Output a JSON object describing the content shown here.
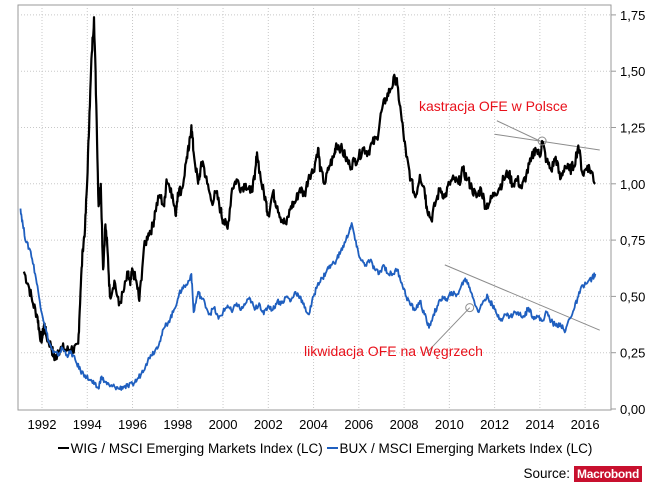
{
  "chart_data": {
    "type": "line",
    "title": "",
    "xlabel": "",
    "ylabel": "",
    "x_ticks": [
      "1992",
      "1994",
      "1996",
      "1998",
      "2000",
      "2002",
      "2004",
      "2006",
      "2008",
      "2010",
      "2012",
      "2014",
      "2016"
    ],
    "y_ticks": [
      "0,00",
      "0,25",
      "0,50",
      "0,75",
      "1,00",
      "1,25",
      "1,50",
      "1,75"
    ],
    "xlim": [
      1991.0,
      2017.0
    ],
    "ylim": [
      0.0,
      1.8
    ],
    "y_axis_side": "right",
    "grid": true,
    "legend_position": "bottom",
    "series": [
      {
        "name": "WIG / MSCI Emerging Markets Index (LC)",
        "color": "#000000",
        "points": [
          [
            1991.2,
            0.61
          ],
          [
            1991.4,
            0.55
          ],
          [
            1991.6,
            0.47
          ],
          [
            1991.8,
            0.41
          ],
          [
            1991.9,
            0.33
          ],
          [
            1992.0,
            0.31
          ],
          [
            1992.1,
            0.38
          ],
          [
            1992.2,
            0.32
          ],
          [
            1992.4,
            0.28
          ],
          [
            1992.5,
            0.24
          ],
          [
            1992.6,
            0.22
          ],
          [
            1992.7,
            0.26
          ],
          [
            1992.9,
            0.27
          ],
          [
            1993.1,
            0.26
          ],
          [
            1993.3,
            0.27
          ],
          [
            1993.4,
            0.25
          ],
          [
            1993.6,
            0.29
          ],
          [
            1993.7,
            0.52
          ],
          [
            1993.8,
            0.71
          ],
          [
            1993.9,
            0.8
          ],
          [
            1994.0,
            1.02
          ],
          [
            1994.1,
            1.32
          ],
          [
            1994.2,
            1.58
          ],
          [
            1994.3,
            1.74
          ],
          [
            1994.4,
            1.35
          ],
          [
            1994.5,
            0.9
          ],
          [
            1994.6,
            1.0
          ],
          [
            1994.7,
            0.62
          ],
          [
            1994.8,
            0.82
          ],
          [
            1994.9,
            0.7
          ],
          [
            1995.0,
            0.5
          ],
          [
            1995.2,
            0.57
          ],
          [
            1995.4,
            0.46
          ],
          [
            1995.6,
            0.52
          ],
          [
            1995.8,
            0.6
          ],
          [
            1995.9,
            0.55
          ],
          [
            1996.0,
            0.62
          ],
          [
            1996.2,
            0.55
          ],
          [
            1996.3,
            0.48
          ],
          [
            1996.5,
            0.71
          ],
          [
            1996.7,
            0.78
          ],
          [
            1996.9,
            0.81
          ],
          [
            1997.0,
            0.88
          ],
          [
            1997.2,
            0.95
          ],
          [
            1997.4,
            0.9
          ],
          [
            1997.5,
            1.02
          ],
          [
            1997.7,
            0.98
          ],
          [
            1997.9,
            0.86
          ],
          [
            1998.0,
            0.96
          ],
          [
            1998.2,
            0.98
          ],
          [
            1998.4,
            1.12
          ],
          [
            1998.5,
            1.16
          ],
          [
            1998.6,
            1.26
          ],
          [
            1998.7,
            1.14
          ],
          [
            1998.9,
            1.0
          ],
          [
            1999.0,
            1.06
          ],
          [
            1999.1,
            1.1
          ],
          [
            1999.3,
            1.0
          ],
          [
            1999.5,
            0.92
          ],
          [
            1999.7,
            0.96
          ],
          [
            1999.9,
            0.88
          ],
          [
            2000.0,
            0.84
          ],
          [
            2000.2,
            0.8
          ],
          [
            2000.4,
            0.98
          ],
          [
            2000.6,
            1.02
          ],
          [
            2000.8,
            0.98
          ],
          [
            2001.0,
            1.0
          ],
          [
            2001.2,
            0.96
          ],
          [
            2001.4,
            1.02
          ],
          [
            2001.5,
            1.14
          ],
          [
            2001.7,
            1.0
          ],
          [
            2001.9,
            0.92
          ],
          [
            2002.0,
            0.86
          ],
          [
            2002.2,
            0.96
          ],
          [
            2002.4,
            0.9
          ],
          [
            2002.6,
            0.84
          ],
          [
            2002.8,
            0.82
          ],
          [
            2003.0,
            0.9
          ],
          [
            2003.2,
            0.92
          ],
          [
            2003.4,
            0.98
          ],
          [
            2003.6,
            0.95
          ],
          [
            2003.8,
            1.04
          ],
          [
            2004.0,
            1.06
          ],
          [
            2004.2,
            1.16
          ],
          [
            2004.3,
            1.06
          ],
          [
            2004.5,
            1.0
          ],
          [
            2004.7,
            1.08
          ],
          [
            2004.9,
            1.12
          ],
          [
            2005.0,
            1.18
          ],
          [
            2005.2,
            1.16
          ],
          [
            2005.4,
            1.12
          ],
          [
            2005.6,
            1.08
          ],
          [
            2005.8,
            1.1
          ],
          [
            2006.0,
            1.12
          ],
          [
            2006.2,
            1.16
          ],
          [
            2006.4,
            1.14
          ],
          [
            2006.6,
            1.18
          ],
          [
            2006.8,
            1.2
          ],
          [
            2007.0,
            1.32
          ],
          [
            2007.2,
            1.38
          ],
          [
            2007.4,
            1.42
          ],
          [
            2007.6,
            1.47
          ],
          [
            2007.7,
            1.44
          ],
          [
            2007.9,
            1.28
          ],
          [
            2008.1,
            1.12
          ],
          [
            2008.3,
            1.02
          ],
          [
            2008.5,
            0.94
          ],
          [
            2008.7,
            1.04
          ],
          [
            2008.9,
            0.98
          ],
          [
            2009.0,
            0.9
          ],
          [
            2009.2,
            0.84
          ],
          [
            2009.4,
            0.92
          ],
          [
            2009.6,
            0.98
          ],
          [
            2009.8,
            0.94
          ],
          [
            2010.0,
            1.0
          ],
          [
            2010.2,
            1.02
          ],
          [
            2010.4,
            1.0
          ],
          [
            2010.6,
            1.06
          ],
          [
            2010.8,
            1.02
          ],
          [
            2011.0,
            0.98
          ],
          [
            2011.2,
            0.94
          ],
          [
            2011.4,
            0.98
          ],
          [
            2011.6,
            0.9
          ],
          [
            2011.8,
            0.92
          ],
          [
            2012.0,
            0.96
          ],
          [
            2012.2,
            0.98
          ],
          [
            2012.4,
            1.02
          ],
          [
            2012.6,
            1.05
          ],
          [
            2012.8,
            1.0
          ],
          [
            2013.0,
            1.02
          ],
          [
            2013.2,
            0.98
          ],
          [
            2013.4,
            1.04
          ],
          [
            2013.6,
            1.1
          ],
          [
            2013.8,
            1.16
          ],
          [
            2014.0,
            1.12
          ],
          [
            2014.1,
            1.19
          ],
          [
            2014.3,
            1.1
          ],
          [
            2014.5,
            1.06
          ],
          [
            2014.7,
            1.12
          ],
          [
            2014.9,
            1.02
          ],
          [
            2015.1,
            1.08
          ],
          [
            2015.3,
            1.06
          ],
          [
            2015.5,
            1.08
          ],
          [
            2015.7,
            1.17
          ],
          [
            2015.9,
            1.04
          ],
          [
            2016.1,
            1.08
          ],
          [
            2016.3,
            1.05
          ],
          [
            2016.45,
            1.0
          ]
        ]
      },
      {
        "name": "BUX / MSCI Emerging Markets Index (LC)",
        "color": "#1f5fbf",
        "points": [
          [
            1991.05,
            0.89
          ],
          [
            1991.15,
            0.82
          ],
          [
            1991.3,
            0.74
          ],
          [
            1991.5,
            0.7
          ],
          [
            1991.7,
            0.6
          ],
          [
            1991.9,
            0.48
          ],
          [
            1992.1,
            0.38
          ],
          [
            1992.3,
            0.3
          ],
          [
            1992.5,
            0.25
          ],
          [
            1992.7,
            0.24
          ],
          [
            1992.9,
            0.27
          ],
          [
            1993.1,
            0.24
          ],
          [
            1993.3,
            0.25
          ],
          [
            1993.5,
            0.21
          ],
          [
            1993.7,
            0.17
          ],
          [
            1993.9,
            0.15
          ],
          [
            1994.1,
            0.13
          ],
          [
            1994.3,
            0.11
          ],
          [
            1994.5,
            0.09
          ],
          [
            1994.6,
            0.14
          ],
          [
            1994.8,
            0.12
          ],
          [
            1995.0,
            0.1
          ],
          [
            1995.2,
            0.1
          ],
          [
            1995.4,
            0.09
          ],
          [
            1995.6,
            0.1
          ],
          [
            1995.8,
            0.1
          ],
          [
            1996.0,
            0.11
          ],
          [
            1996.2,
            0.13
          ],
          [
            1996.4,
            0.16
          ],
          [
            1996.6,
            0.2
          ],
          [
            1996.8,
            0.24
          ],
          [
            1997.0,
            0.26
          ],
          [
            1997.2,
            0.3
          ],
          [
            1997.4,
            0.36
          ],
          [
            1997.6,
            0.39
          ],
          [
            1997.8,
            0.43
          ],
          [
            1998.0,
            0.49
          ],
          [
            1998.2,
            0.54
          ],
          [
            1998.4,
            0.55
          ],
          [
            1998.6,
            0.6
          ],
          [
            1998.7,
            0.43
          ],
          [
            1998.9,
            0.52
          ],
          [
            1999.0,
            0.5
          ],
          [
            1999.2,
            0.47
          ],
          [
            1999.4,
            0.42
          ],
          [
            1999.6,
            0.45
          ],
          [
            1999.8,
            0.4
          ],
          [
            2000.0,
            0.43
          ],
          [
            2000.2,
            0.46
          ],
          [
            2000.4,
            0.43
          ],
          [
            2000.6,
            0.47
          ],
          [
            2000.8,
            0.44
          ],
          [
            2001.0,
            0.47
          ],
          [
            2001.2,
            0.49
          ],
          [
            2001.4,
            0.44
          ],
          [
            2001.6,
            0.47
          ],
          [
            2001.8,
            0.42
          ],
          [
            2002.0,
            0.46
          ],
          [
            2002.2,
            0.44
          ],
          [
            2002.4,
            0.48
          ],
          [
            2002.6,
            0.47
          ],
          [
            2002.8,
            0.5
          ],
          [
            2003.0,
            0.48
          ],
          [
            2003.2,
            0.52
          ],
          [
            2003.4,
            0.5
          ],
          [
            2003.6,
            0.45
          ],
          [
            2003.8,
            0.42
          ],
          [
            2004.0,
            0.5
          ],
          [
            2004.2,
            0.56
          ],
          [
            2004.4,
            0.58
          ],
          [
            2004.6,
            0.62
          ],
          [
            2004.8,
            0.64
          ],
          [
            2005.0,
            0.66
          ],
          [
            2005.2,
            0.7
          ],
          [
            2005.4,
            0.74
          ],
          [
            2005.6,
            0.8
          ],
          [
            2005.7,
            0.82
          ],
          [
            2005.9,
            0.72
          ],
          [
            2006.1,
            0.66
          ],
          [
            2006.3,
            0.64
          ],
          [
            2006.5,
            0.66
          ],
          [
            2006.7,
            0.62
          ],
          [
            2006.9,
            0.6
          ],
          [
            2007.1,
            0.64
          ],
          [
            2007.3,
            0.6
          ],
          [
            2007.5,
            0.6
          ],
          [
            2007.7,
            0.62
          ],
          [
            2007.9,
            0.56
          ],
          [
            2008.1,
            0.5
          ],
          [
            2008.3,
            0.46
          ],
          [
            2008.5,
            0.44
          ],
          [
            2008.7,
            0.48
          ],
          [
            2008.9,
            0.42
          ],
          [
            2009.1,
            0.36
          ],
          [
            2009.3,
            0.42
          ],
          [
            2009.5,
            0.46
          ],
          [
            2009.7,
            0.5
          ],
          [
            2009.9,
            0.48
          ],
          [
            2010.1,
            0.52
          ],
          [
            2010.3,
            0.5
          ],
          [
            2010.5,
            0.54
          ],
          [
            2010.7,
            0.58
          ],
          [
            2010.9,
            0.54
          ],
          [
            2011.1,
            0.48
          ],
          [
            2011.3,
            0.43
          ],
          [
            2011.5,
            0.48
          ],
          [
            2011.7,
            0.5
          ],
          [
            2011.9,
            0.46
          ],
          [
            2012.1,
            0.42
          ],
          [
            2012.3,
            0.4
          ],
          [
            2012.5,
            0.42
          ],
          [
            2012.7,
            0.41
          ],
          [
            2012.9,
            0.43
          ],
          [
            2013.1,
            0.42
          ],
          [
            2013.3,
            0.41
          ],
          [
            2013.5,
            0.45
          ],
          [
            2013.7,
            0.41
          ],
          [
            2013.9,
            0.41
          ],
          [
            2014.1,
            0.39
          ],
          [
            2014.3,
            0.43
          ],
          [
            2014.5,
            0.39
          ],
          [
            2014.7,
            0.37
          ],
          [
            2014.9,
            0.38
          ],
          [
            2015.1,
            0.34
          ],
          [
            2015.3,
            0.4
          ],
          [
            2015.5,
            0.44
          ],
          [
            2015.7,
            0.5
          ],
          [
            2015.9,
            0.55
          ],
          [
            2016.1,
            0.56
          ],
          [
            2016.3,
            0.58
          ],
          [
            2016.45,
            0.6
          ]
        ]
      }
    ],
    "annotations": [
      {
        "text": "kastracja OFE w Polsce",
        "color": "#e8101a",
        "marker": [
          2014.1,
          1.19
        ],
        "trend_line": [
          [
            2012.0,
            1.22
          ],
          [
            2017.0,
            1.15
          ]
        ]
      },
      {
        "text": "likwidacja OFE na Węgrzech",
        "color": "#e8101a",
        "marker": [
          2010.9,
          0.45
        ],
        "trend_line": [
          [
            2009.8,
            0.64
          ],
          [
            2017.0,
            0.35
          ]
        ]
      }
    ],
    "annotation_pointer_lines": [
      {
        "from": [
          2012.1,
          1.28
        ],
        "to": [
          2014.0,
          1.19
        ]
      },
      {
        "from": [
          2009.0,
          0.25
        ],
        "to": [
          2010.9,
          0.45
        ]
      }
    ]
  },
  "legend": {
    "items": [
      {
        "label": "WIG / MSCI Emerging Markets Index (LC)",
        "color": "#000000"
      },
      {
        "label": "BUX / MSCI Emerging Markets Index (LC)",
        "color": "#1f5fbf"
      }
    ]
  },
  "source": {
    "label": "Source:",
    "brand": "Macrobond",
    "brand_color": "#c8102e"
  }
}
